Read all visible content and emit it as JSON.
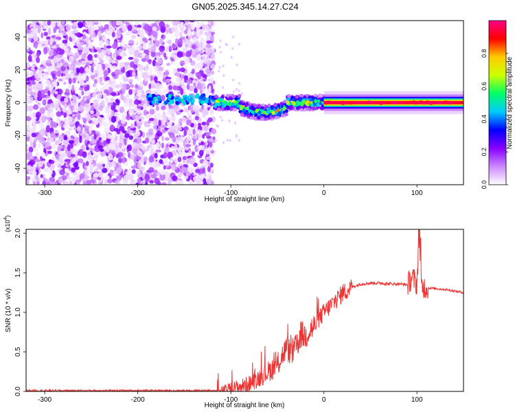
{
  "title": "GN05.2025.345.14.27.C24",
  "chart_data": [
    {
      "type": "heatmap",
      "xlabel": "Height of straight line (km)",
      "ylabel": "Frequency (Hz)",
      "xlim": [
        -320,
        150
      ],
      "ylim": [
        -50,
        50
      ],
      "xticks": [
        -300,
        -200,
        -100,
        0,
        100
      ],
      "yticks": [
        -40,
        -20,
        0,
        20,
        40
      ],
      "colorbar": {
        "label": "Normalized spectral amplitude",
        "ticks": [
          "0.0",
          "0.2",
          "0.4",
          "0.6",
          "0.8"
        ],
        "range": [
          0,
          1
        ],
        "colors": [
          "#ffffff",
          "#cc88ff",
          "#8800ff",
          "#0000ff",
          "#00ccff",
          "#00ff66",
          "#ccff00",
          "#ffcc00",
          "#ff0000",
          "#ff0088"
        ]
      },
      "regions": [
        {
          "x_range": [
            -320,
            -118
          ],
          "freq_range": [
            -50,
            50
          ],
          "amplitude": [
            0.02,
            0.25
          ],
          "description_values": "broadband noise"
        },
        {
          "x_range": [
            -190,
            -118
          ],
          "center_freq": 2,
          "amplitude": [
            0.3,
            0.5
          ]
        },
        {
          "x_range": [
            -118,
            0
          ],
          "center_freq": 0,
          "amplitude": [
            0.3,
            0.8
          ]
        },
        {
          "x_range": [
            0,
            150
          ],
          "center_freq": 0,
          "amplitude": [
            0.9,
            1.0
          ]
        }
      ]
    },
    {
      "type": "line",
      "xlabel": "Height of straight line (km)",
      "ylabel": "SNR (10 * v/v)",
      "yscale_label": "(x10",
      "yscale_exp": "4",
      "yscale_close": ")",
      "xlim": [
        -320,
        150
      ],
      "ylim": [
        0,
        2.05
      ],
      "xticks": [
        -300,
        -200,
        -100,
        0,
        100
      ],
      "yticks": [
        "0.0",
        "0.5",
        "1.0",
        "1.5",
        "2.0"
      ],
      "color": "#ee3333",
      "series": [
        {
          "x": [
            -320,
            -110,
            -100,
            -90,
            -80,
            -70,
            -60,
            -50,
            -45,
            -40,
            -35,
            -30,
            -25,
            -20,
            -15,
            -10,
            -5,
            0,
            10,
            20,
            30,
            40,
            50,
            60,
            70,
            80,
            90,
            95,
            100,
            102,
            105,
            110,
            120,
            130,
            140,
            150
          ],
          "y": [
            0.01,
            0.01,
            0.04,
            0.06,
            0.1,
            0.17,
            0.25,
            0.33,
            0.45,
            0.55,
            0.48,
            0.55,
            0.72,
            0.7,
            0.78,
            0.82,
            0.92,
            1.0,
            1.12,
            1.24,
            1.32,
            1.36,
            1.37,
            1.37,
            1.36,
            1.36,
            1.35,
            1.45,
            1.35,
            2.0,
            1.33,
            1.31,
            1.3,
            1.29,
            1.27,
            1.25
          ]
        }
      ]
    }
  ]
}
